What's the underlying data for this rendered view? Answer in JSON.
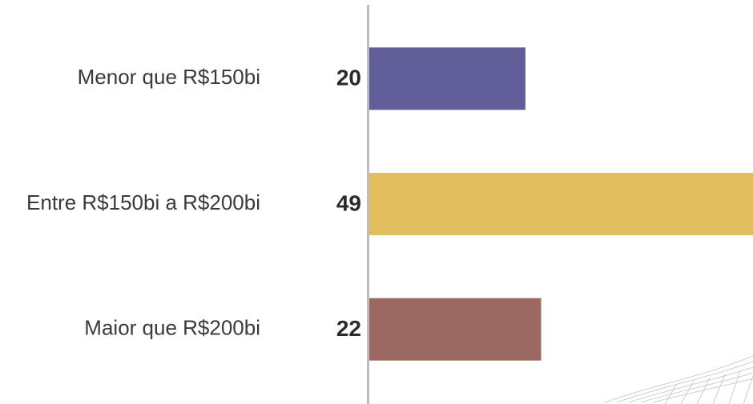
{
  "chart_data": {
    "type": "bar",
    "orientation": "horizontal",
    "categories": [
      "Menor que R$150bi",
      "Entre R$150bi a R$200bi",
      "Maior que R$200bi"
    ],
    "values": [
      20,
      49,
      22
    ],
    "colors": [
      "#625e99",
      "#e2bd5e",
      "#9b6862"
    ],
    "xlim": [
      0,
      49
    ]
  }
}
